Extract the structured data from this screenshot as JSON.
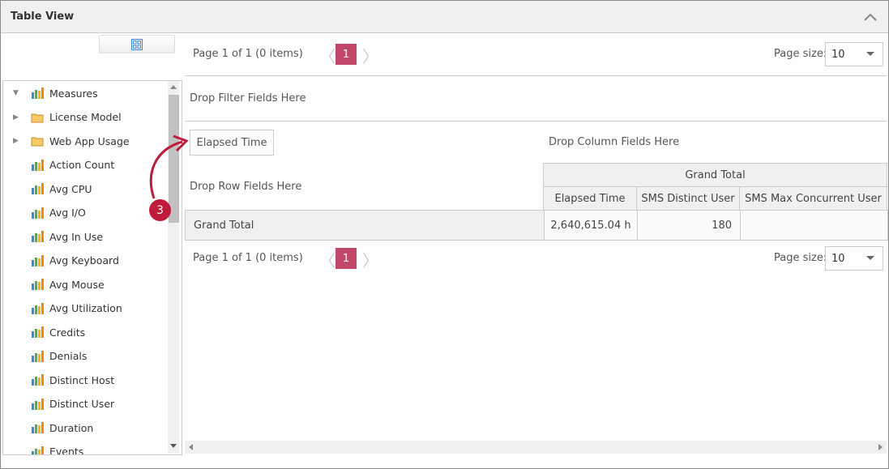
{
  "window": {
    "title": "Table View"
  },
  "tree": {
    "items": [
      {
        "label": "Measures",
        "type": "measure-group",
        "expanded": true
      },
      {
        "label": "License Model",
        "type": "folder",
        "expanded": false
      },
      {
        "label": "Web App Usage",
        "type": "folder",
        "expanded": false
      },
      {
        "label": "Action Count",
        "type": "measure"
      },
      {
        "label": "Avg CPU",
        "type": "measure"
      },
      {
        "label": "Avg I/O",
        "type": "measure"
      },
      {
        "label": "Avg In Use",
        "type": "measure"
      },
      {
        "label": "Avg Keyboard",
        "type": "measure"
      },
      {
        "label": "Avg Mouse",
        "type": "measure"
      },
      {
        "label": "Avg Utilization",
        "type": "measure"
      },
      {
        "label": "Credits",
        "type": "measure"
      },
      {
        "label": "Denials",
        "type": "measure"
      },
      {
        "label": "Distinct Host",
        "type": "measure"
      },
      {
        "label": "Distinct User",
        "type": "measure"
      },
      {
        "label": "Duration",
        "type": "measure"
      },
      {
        "label": "Events",
        "type": "measure"
      }
    ]
  },
  "pager": {
    "info": "Page 1 of 1 (0 items)",
    "current_page": "1",
    "page_size_label": "Page size:",
    "page_size": "10"
  },
  "pivot": {
    "filter_area": "Drop Filter Fields Here",
    "data_field": "Elapsed Time",
    "column_area": "Drop Column Fields Here",
    "row_area": "Drop Row Fields Here",
    "grand_total_header": "Grand Total",
    "columns": [
      "Elapsed Time",
      "SMS Distinct User",
      "SMS Max Concurrent User"
    ],
    "rows": [
      {
        "label": "Grand Total",
        "values": [
          "2,640,615.04 h",
          "180",
          ""
        ]
      }
    ]
  },
  "annotation": {
    "step": "3"
  },
  "colors": {
    "accent": "#c0476a",
    "annotation": "#c01a3a"
  }
}
